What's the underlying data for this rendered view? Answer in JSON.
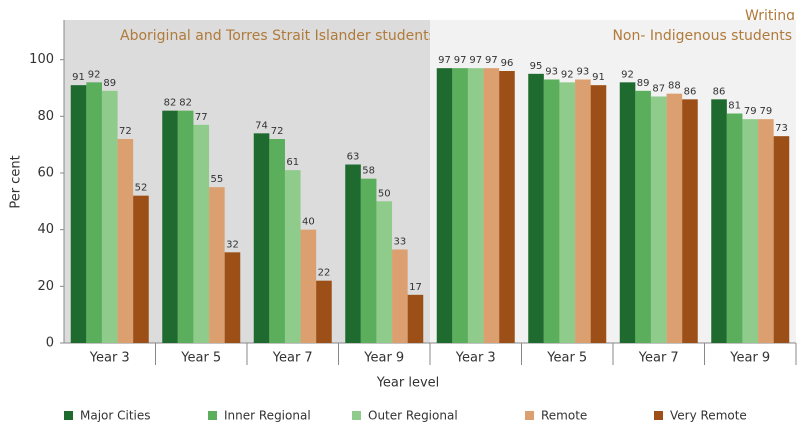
{
  "chart_data": {
    "type": "bar",
    "title": "Writing",
    "panel_labels": [
      "Aboriginal and Torres Strait Islander students",
      "Non- Indigenous students"
    ],
    "categories": [
      "Year 3",
      "Year 5",
      "Year 7",
      "Year 9",
      "Year 3",
      "Year 5",
      "Year 7",
      "Year 9"
    ],
    "series": [
      {
        "name": "Major Cities",
        "color": "#1f6b2f",
        "values": [
          91,
          82,
          74,
          63,
          97,
          95,
          92,
          86
        ]
      },
      {
        "name": "Inner Regional",
        "color": "#5aae5c",
        "values": [
          92,
          82,
          72,
          58,
          97,
          93,
          89,
          81
        ]
      },
      {
        "name": "Outer Regional",
        "color": "#8fcb8a",
        "values": [
          89,
          77,
          61,
          50,
          97,
          92,
          87,
          79
        ]
      },
      {
        "name": "Remote",
        "color": "#dca070",
        "values": [
          72,
          55,
          40,
          33,
          97,
          93,
          88,
          79
        ]
      },
      {
        "name": "Very Remote",
        "color": "#9c4f17",
        "values": [
          52,
          32,
          22,
          17,
          96,
          91,
          86,
          73
        ]
      }
    ],
    "x_label": "Year level",
    "y_label": "Per cent",
    "ylim": [
      0,
      114
    ],
    "yticks": [
      0,
      20,
      40,
      60,
      80,
      100
    ],
    "legend": "bottom"
  }
}
